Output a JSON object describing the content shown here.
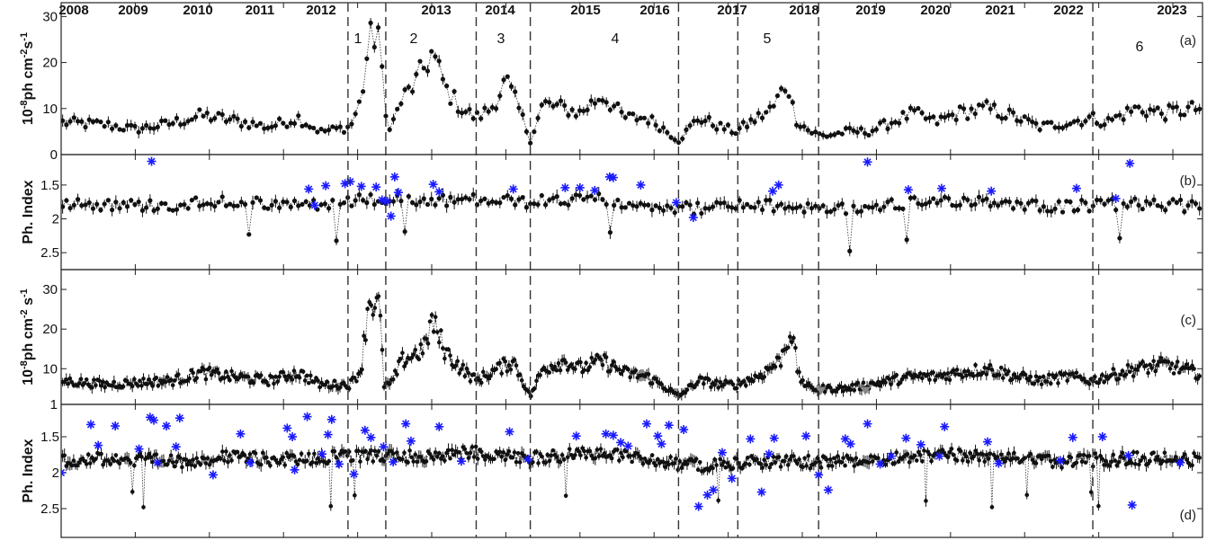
{
  "years": [
    "2008",
    "2009",
    "2010",
    "2011",
    "2012",
    "2013",
    "2014",
    "2015",
    "2016",
    "2017",
    "2018",
    "2019",
    "2020",
    "2021",
    "2022",
    "2023"
  ],
  "segment_labels": [
    "1",
    "2",
    "3",
    "4",
    "5",
    "6"
  ],
  "panel_labels": [
    "(a)",
    "(b)",
    "(c)",
    "(d)"
  ],
  "y_labels": {
    "a": {
      "prefix": "10",
      "exp1": "-8",
      "mid": "ph cm",
      "exp2": "-2",
      "s": "s",
      "exp3": "-1"
    },
    "b": "Ph. Index",
    "c": {
      "prefix": "10",
      "exp1": "-8",
      "mid": "ph cm",
      "exp2": "-2",
      "s": " s",
      "exp3": "-1"
    },
    "d": "Ph. Index"
  },
  "y_ticks": {
    "a": [
      "0",
      "10",
      "20",
      "30"
    ],
    "b": [
      "1.5",
      "2",
      "2.5"
    ],
    "c": [
      "1",
      "10",
      "20",
      "30"
    ],
    "d": [
      "1.5",
      "2",
      "2.5"
    ]
  },
  "colors": {
    "points": "#111111",
    "soft_points": "#1a1aff",
    "upper_limits": "#888888",
    "dividers": "#333333"
  },
  "chart_data": [
    {
      "id": "a",
      "type": "scatter",
      "x_units": "year",
      "xlim": [
        2008.0,
        2023.4
      ],
      "ylim": [
        0,
        33
      ],
      "yticks": [
        0,
        10,
        20,
        30
      ],
      "x_dividers": [
        2011.87,
        2012.38,
        2013.6,
        2014.33,
        2016.33,
        2017.13,
        2018.22,
        2021.92
      ],
      "anchors": [
        [
          2008.0,
          7
        ],
        [
          2008.6,
          6.5
        ],
        [
          2009.0,
          5.5
        ],
        [
          2009.4,
          6.5
        ],
        [
          2009.9,
          8.5
        ],
        [
          2010.3,
          7.5
        ],
        [
          2010.8,
          6
        ],
        [
          2011.2,
          8
        ],
        [
          2011.5,
          5
        ],
        [
          2011.9,
          6
        ],
        [
          2012.05,
          12
        ],
        [
          2012.15,
          24
        ],
        [
          2012.3,
          28
        ],
        [
          2012.35,
          9
        ],
        [
          2012.45,
          6
        ],
        [
          2012.6,
          12
        ],
        [
          2012.8,
          16
        ],
        [
          2013.0,
          22
        ],
        [
          2013.2,
          14
        ],
        [
          2013.4,
          10
        ],
        [
          2013.6,
          8
        ],
        [
          2013.8,
          10
        ],
        [
          2014.0,
          16
        ],
        [
          2014.2,
          9
        ],
        [
          2014.33,
          3
        ],
        [
          2014.5,
          11
        ],
        [
          2014.8,
          10
        ],
        [
          2015.0,
          9
        ],
        [
          2015.3,
          13
        ],
        [
          2015.6,
          8
        ],
        [
          2015.9,
          8
        ],
        [
          2016.1,
          6
        ],
        [
          2016.33,
          3
        ],
        [
          2016.6,
          8
        ],
        [
          2016.9,
          6
        ],
        [
          2017.1,
          5
        ],
        [
          2017.3,
          7
        ],
        [
          2017.6,
          10
        ],
        [
          2017.8,
          16
        ],
        [
          2017.9,
          8
        ],
        [
          2018.1,
          5
        ],
        [
          2018.3,
          4
        ],
        [
          2018.6,
          5
        ],
        [
          2018.9,
          5
        ],
        [
          2019.2,
          7
        ],
        [
          2019.5,
          9
        ],
        [
          2019.8,
          7
        ],
        [
          2020.1,
          9
        ],
        [
          2020.5,
          10
        ],
        [
          2020.9,
          8
        ],
        [
          2021.2,
          6
        ],
        [
          2021.6,
          7
        ],
        [
          2021.9,
          8
        ],
        [
          2022.1,
          7
        ],
        [
          2022.5,
          10
        ],
        [
          2022.9,
          9
        ],
        [
          2023.3,
          10
        ]
      ],
      "markers": []
    },
    {
      "id": "b",
      "type": "scatter",
      "x_units": "year",
      "xlim": [
        2008.0,
        2023.4
      ],
      "ylim": [
        2.75,
        1.05
      ],
      "yticks": [
        1.5,
        2,
        2.5
      ],
      "inverted": true,
      "x_dividers": [
        2011.87,
        2012.38,
        2013.6,
        2014.33,
        2016.33,
        2017.13,
        2018.22,
        2021.92
      ],
      "anchors": [
        [
          2008.0,
          1.75
        ],
        [
          2008.8,
          1.8
        ],
        [
          2009.5,
          1.8
        ],
        [
          2010.2,
          1.72
        ],
        [
          2010.9,
          1.8
        ],
        [
          2011.5,
          1.78
        ],
        [
          2012.1,
          1.72
        ],
        [
          2012.8,
          1.75
        ],
        [
          2013.6,
          1.72
        ],
        [
          2014.33,
          1.75
        ],
        [
          2015.2,
          1.7
        ],
        [
          2015.9,
          1.78
        ],
        [
          2016.5,
          1.85
        ],
        [
          2017.2,
          1.8
        ],
        [
          2017.9,
          1.82
        ],
        [
          2018.6,
          1.85
        ],
        [
          2019.3,
          1.78
        ],
        [
          2020.0,
          1.72
        ],
        [
          2020.7,
          1.75
        ],
        [
          2021.4,
          1.82
        ],
        [
          2022.0,
          1.8
        ],
        [
          2022.6,
          1.78
        ],
        [
          2023.3,
          1.82
        ]
      ],
      "markers": [
        [
          2009.22,
          1.15
        ],
        [
          2011.34,
          1.56
        ],
        [
          2011.42,
          1.8
        ],
        [
          2011.57,
          1.51
        ],
        [
          2011.83,
          1.48
        ],
        [
          2011.9,
          1.45
        ],
        [
          2012.05,
          1.52
        ],
        [
          2012.25,
          1.53
        ],
        [
          2012.33,
          1.72
        ],
        [
          2012.4,
          1.74
        ],
        [
          2012.45,
          1.96
        ],
        [
          2012.5,
          1.38
        ],
        [
          2012.55,
          1.61
        ],
        [
          2013.02,
          1.49
        ],
        [
          2013.1,
          1.6
        ],
        [
          2014.1,
          1.56
        ],
        [
          2014.8,
          1.54
        ],
        [
          2015.0,
          1.54
        ],
        [
          2015.2,
          1.58
        ],
        [
          2015.4,
          1.38
        ],
        [
          2015.45,
          1.39
        ],
        [
          2015.82,
          1.5
        ],
        [
          2016.3,
          1.76
        ],
        [
          2016.53,
          1.98
        ],
        [
          2017.6,
          1.59
        ],
        [
          2017.68,
          1.5
        ],
        [
          2018.88,
          1.16
        ],
        [
          2019.43,
          1.57
        ],
        [
          2019.88,
          1.55
        ],
        [
          2020.55,
          1.59
        ],
        [
          2021.7,
          1.55
        ],
        [
          2022.23,
          1.7
        ],
        [
          2022.42,
          1.18
        ]
      ]
    },
    {
      "id": "c",
      "type": "scatter",
      "x_units": "year",
      "xlim": [
        2008.0,
        2023.4
      ],
      "ylim": [
        1,
        35
      ],
      "yticks": [
        1,
        10,
        20,
        30
      ],
      "x_dividers": [
        2011.87,
        2012.38,
        2013.6,
        2014.33,
        2016.33,
        2017.13,
        2018.22,
        2021.92
      ],
      "anchors": [
        [
          2008.0,
          7
        ],
        [
          2008.6,
          6
        ],
        [
          2009.0,
          6.5
        ],
        [
          2009.5,
          7
        ],
        [
          2009.9,
          9
        ],
        [
          2010.3,
          8
        ],
        [
          2010.8,
          7
        ],
        [
          2011.2,
          9
        ],
        [
          2011.5,
          6
        ],
        [
          2011.9,
          6
        ],
        [
          2012.05,
          10
        ],
        [
          2012.15,
          28
        ],
        [
          2012.3,
          25
        ],
        [
          2012.35,
          6
        ],
        [
          2012.45,
          6
        ],
        [
          2012.6,
          12
        ],
        [
          2012.9,
          15
        ],
        [
          2013.0,
          22
        ],
        [
          2013.2,
          14
        ],
        [
          2013.4,
          10
        ],
        [
          2013.6,
          7
        ],
        [
          2013.9,
          10
        ],
        [
          2014.1,
          12
        ],
        [
          2014.33,
          3
        ],
        [
          2014.5,
          10
        ],
        [
          2014.8,
          12
        ],
        [
          2015.0,
          10
        ],
        [
          2015.3,
          12
        ],
        [
          2015.6,
          9
        ],
        [
          2015.9,
          8
        ],
        [
          2016.1,
          6
        ],
        [
          2016.33,
          3
        ],
        [
          2016.6,
          7
        ],
        [
          2016.9,
          6
        ],
        [
          2017.1,
          6
        ],
        [
          2017.4,
          8
        ],
        [
          2017.7,
          12
        ],
        [
          2017.85,
          20
        ],
        [
          2017.95,
          8
        ],
        [
          2018.1,
          5
        ],
        [
          2018.3,
          5
        ],
        [
          2018.6,
          5
        ],
        [
          2018.9,
          6
        ],
        [
          2019.2,
          7
        ],
        [
          2019.5,
          8
        ],
        [
          2019.8,
          8
        ],
        [
          2020.1,
          9
        ],
        [
          2020.5,
          10
        ],
        [
          2020.9,
          8
        ],
        [
          2021.2,
          7
        ],
        [
          2021.6,
          8
        ],
        [
          2021.9,
          7
        ],
        [
          2022.1,
          8
        ],
        [
          2022.5,
          10
        ],
        [
          2022.9,
          11
        ],
        [
          2023.3,
          9
        ]
      ],
      "markers": []
    },
    {
      "id": "d",
      "type": "scatter",
      "x_units": "year",
      "xlim": [
        2008.0,
        2023.4
      ],
      "ylim": [
        2.9,
        1.05
      ],
      "yticks": [
        1.5,
        2,
        2.5
      ],
      "inverted": true,
      "x_dividers": [
        2011.87,
        2012.38,
        2013.6,
        2014.33,
        2016.33,
        2017.13,
        2018.22,
        2021.92
      ],
      "anchors": [
        [
          2008.0,
          1.82
        ],
        [
          2008.8,
          1.8
        ],
        [
          2009.5,
          1.85
        ],
        [
          2010.2,
          1.78
        ],
        [
          2010.9,
          1.82
        ],
        [
          2011.5,
          1.8
        ],
        [
          2012.1,
          1.75
        ],
        [
          2012.8,
          1.78
        ],
        [
          2013.6,
          1.72
        ],
        [
          2014.33,
          1.8
        ],
        [
          2015.2,
          1.72
        ],
        [
          2015.9,
          1.8
        ],
        [
          2016.5,
          1.9
        ],
        [
          2017.2,
          1.85
        ],
        [
          2017.9,
          1.85
        ],
        [
          2018.6,
          1.85
        ],
        [
          2019.3,
          1.78
        ],
        [
          2020.0,
          1.75
        ],
        [
          2020.7,
          1.78
        ],
        [
          2021.4,
          1.85
        ],
        [
          2022.0,
          1.82
        ],
        [
          2022.6,
          1.8
        ],
        [
          2023.3,
          1.82
        ]
      ],
      "markers": [
        [
          2008.0,
          2.0
        ],
        [
          2008.4,
          1.33
        ],
        [
          2008.5,
          1.62
        ],
        [
          2008.73,
          1.35
        ],
        [
          2009.05,
          1.67
        ],
        [
          2009.2,
          1.23
        ],
        [
          2009.25,
          1.27
        ],
        [
          2009.3,
          1.86
        ],
        [
          2009.42,
          1.35
        ],
        [
          2009.55,
          1.64
        ],
        [
          2009.6,
          1.24
        ],
        [
          2010.05,
          2.03
        ],
        [
          2010.42,
          1.46
        ],
        [
          2010.55,
          1.86
        ],
        [
          2011.05,
          1.38
        ],
        [
          2011.12,
          1.5
        ],
        [
          2011.15,
          1.96
        ],
        [
          2011.32,
          1.22
        ],
        [
          2011.52,
          1.74
        ],
        [
          2011.6,
          1.47
        ],
        [
          2011.65,
          1.26
        ],
        [
          2011.75,
          1.88
        ],
        [
          2011.95,
          2.02
        ],
        [
          2012.1,
          1.41
        ],
        [
          2012.18,
          1.51
        ],
        [
          2012.35,
          1.64
        ],
        [
          2012.48,
          1.85
        ],
        [
          2012.65,
          1.32
        ],
        [
          2012.72,
          1.56
        ],
        [
          2013.1,
          1.36
        ],
        [
          2013.4,
          1.84
        ],
        [
          2014.05,
          1.43
        ],
        [
          2014.3,
          1.81
        ],
        [
          2014.95,
          1.49
        ],
        [
          2015.35,
          1.46
        ],
        [
          2015.45,
          1.48
        ],
        [
          2015.55,
          1.58
        ],
        [
          2015.65,
          1.63
        ],
        [
          2015.9,
          1.32
        ],
        [
          2016.05,
          1.49
        ],
        [
          2016.1,
          1.6
        ],
        [
          2016.2,
          1.34
        ],
        [
          2016.4,
          1.4
        ],
        [
          2016.6,
          2.47
        ],
        [
          2016.72,
          2.31
        ],
        [
          2016.8,
          2.24
        ],
        [
          2016.92,
          1.72
        ],
        [
          2017.05,
          2.08
        ],
        [
          2017.3,
          1.53
        ],
        [
          2017.45,
          2.27
        ],
        [
          2017.55,
          1.74
        ],
        [
          2017.62,
          1.52
        ],
        [
          2018.05,
          1.49
        ],
        [
          2018.22,
          2.03
        ],
        [
          2018.35,
          2.24
        ],
        [
          2018.58,
          1.53
        ],
        [
          2018.65,
          1.6
        ],
        [
          2018.88,
          1.32
        ],
        [
          2019.05,
          1.88
        ],
        [
          2019.2,
          1.77
        ],
        [
          2019.4,
          1.52
        ],
        [
          2019.6,
          1.61
        ],
        [
          2019.85,
          1.77
        ],
        [
          2019.92,
          1.36
        ],
        [
          2020.5,
          1.57
        ],
        [
          2020.65,
          1.87
        ],
        [
          2021.48,
          1.83
        ],
        [
          2021.65,
          1.51
        ],
        [
          2022.05,
          1.5
        ],
        [
          2022.4,
          1.76
        ],
        [
          2022.45,
          2.45
        ],
        [
          2023.1,
          1.86
        ]
      ]
    }
  ]
}
